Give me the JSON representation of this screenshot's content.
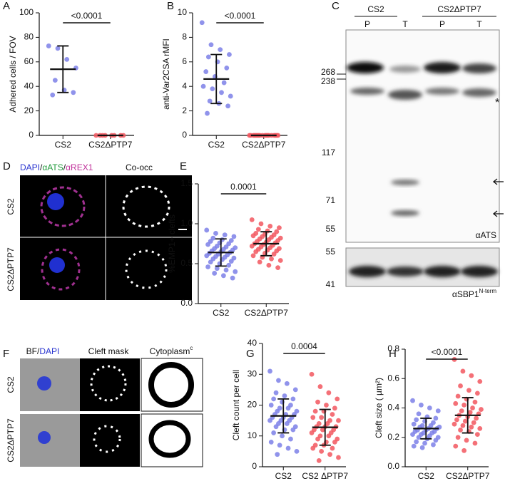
{
  "chart_data": [
    {
      "type": "dot",
      "panel": "A",
      "ylabel": "Adhered cells / FOV",
      "p_value": "<0.0001",
      "ylim": [
        0,
        100
      ],
      "yticks": [
        0,
        20,
        40,
        60,
        80,
        100
      ],
      "series": [
        {
          "name": "CS2",
          "color": "#7c80e8",
          "values": [
            73,
            71,
            62,
            55,
            45,
            37,
            35,
            33
          ],
          "mean": 54,
          "sd": 19
        },
        {
          "name": "CS2ΔPTP7",
          "color": "#f2575f",
          "values": [
            0,
            0,
            0,
            0,
            0,
            0,
            0,
            0
          ],
          "mean": 0,
          "sd": 0
        }
      ]
    },
    {
      "type": "dot",
      "panel": "B",
      "ylabel": "anti-Var2CSA rMFI",
      "p_value": "<0.0001",
      "ylim": [
        0,
        10
      ],
      "yticks": [
        0,
        2,
        4,
        6,
        8,
        10
      ],
      "series": [
        {
          "name": "CS2",
          "color": "#7c80e8",
          "values": [
            9.2,
            7.4,
            7.0,
            6.6,
            6.4,
            6.0,
            5.5,
            5.2,
            4.8,
            4.3,
            4.0,
            3.8,
            3.5,
            3.2,
            2.8,
            2.6,
            2.4,
            1.8
          ],
          "mean": 4.6,
          "sd": 2.0
        },
        {
          "name": "CS2ΔPTP7",
          "color": "#f2575f",
          "values": [
            0,
            0,
            0,
            0,
            0,
            0,
            0,
            0,
            0,
            0,
            0,
            0,
            0,
            0,
            0,
            0,
            0,
            0
          ],
          "mean": 0,
          "sd": 0
        }
      ]
    },
    {
      "type": "dot",
      "panel": "E",
      "ylabel": "%EMP1+ clefts",
      "p_value": "0.0001",
      "ylim": [
        0,
        1.5
      ],
      "yticks": [
        {
          "value": 0,
          "label": "0.0"
        },
        0.5,
        {
          "value": 1,
          "label": "1.0"
        },
        1.5
      ],
      "series": [
        {
          "name": "CS2",
          "color": "#7c80e8",
          "values": [
            0.92,
            0.88,
            0.86,
            0.84,
            0.82,
            0.8,
            0.79,
            0.78,
            0.76,
            0.75,
            0.74,
            0.72,
            0.71,
            0.7,
            0.69,
            0.68,
            0.67,
            0.66,
            0.65,
            0.64,
            0.63,
            0.62,
            0.61,
            0.6,
            0.59,
            0.58,
            0.57,
            0.56,
            0.55,
            0.53,
            0.52,
            0.5,
            0.48,
            0.46,
            0.44,
            0.42,
            0.4,
            0.38,
            0.35,
            0.32
          ],
          "mean": 0.64,
          "sd": 0.17
        },
        {
          "name": "CS2ΔPTP7",
          "color": "#f2575f",
          "values": [
            1.05,
            1.0,
            0.97,
            0.95,
            0.93,
            0.91,
            0.9,
            0.88,
            0.87,
            0.86,
            0.85,
            0.84,
            0.83,
            0.82,
            0.81,
            0.8,
            0.79,
            0.78,
            0.77,
            0.76,
            0.75,
            0.74,
            0.73,
            0.72,
            0.71,
            0.7,
            0.69,
            0.68,
            0.67,
            0.66,
            0.65,
            0.63,
            0.62,
            0.6,
            0.58,
            0.56,
            0.54,
            0.52,
            0.48,
            0.45
          ],
          "mean": 0.75,
          "sd": 0.15
        }
      ]
    },
    {
      "type": "dot",
      "panel": "G",
      "ylabel": "Cleft count per cell",
      "p_value": "0.0004",
      "ylim": [
        0,
        40
      ],
      "yticks": [
        0,
        10,
        20,
        30,
        40
      ],
      "series": [
        {
          "name": "CS2",
          "color": "#7c80e8",
          "values": [
            31,
            28,
            27,
            25,
            24,
            23,
            22,
            22,
            21,
            20,
            20,
            19,
            19,
            18,
            18,
            17,
            17,
            17,
            16,
            16,
            16,
            15,
            15,
            15,
            14,
            14,
            13,
            13,
            12,
            12,
            11,
            10,
            9,
            8,
            7,
            6,
            5,
            4
          ],
          "mean": 16.5,
          "sd": 5.5
        },
        {
          "name": "CS2 ΔPTP7",
          "color": "#f2575f",
          "values": [
            30,
            26,
            24,
            22,
            21,
            20,
            19,
            18,
            18,
            17,
            16,
            16,
            15,
            15,
            14,
            14,
            13,
            13,
            13,
            12,
            12,
            12,
            11,
            11,
            10,
            10,
            9,
            9,
            8,
            8,
            7,
            7,
            6,
            6,
            5,
            4,
            3,
            2
          ],
          "mean": 12.8,
          "sd": 5.8
        }
      ]
    },
    {
      "type": "dot",
      "panel": "H",
      "ylabel": "Cleft size ( µm²)",
      "p_value": "<0.0001",
      "ylim": [
        0,
        0.8
      ],
      "yticks": [
        {
          "value": 0,
          "label": "0.0"
        },
        0.2,
        0.4,
        0.6,
        0.8
      ],
      "series": [
        {
          "name": "CS2",
          "color": "#7c80e8",
          "values": [
            0.45,
            0.42,
            0.4,
            0.38,
            0.36,
            0.34,
            0.33,
            0.32,
            0.31,
            0.3,
            0.29,
            0.28,
            0.28,
            0.27,
            0.27,
            0.26,
            0.26,
            0.25,
            0.25,
            0.24,
            0.24,
            0.23,
            0.23,
            0.22,
            0.22,
            0.21,
            0.2,
            0.2,
            0.19,
            0.18,
            0.17,
            0.16,
            0.15,
            0.14,
            0.13
          ],
          "mean": 0.26,
          "sd": 0.07
        },
        {
          "name": "CS2ΔPTP7",
          "color": "#f2575f",
          "values": [
            0.73,
            0.65,
            0.62,
            0.58,
            0.55,
            0.52,
            0.5,
            0.48,
            0.46,
            0.44,
            0.43,
            0.42,
            0.4,
            0.39,
            0.38,
            0.37,
            0.36,
            0.35,
            0.34,
            0.33,
            0.32,
            0.31,
            0.3,
            0.29,
            0.28,
            0.27,
            0.26,
            0.25,
            0.24,
            0.22,
            0.2,
            0.18,
            0.16,
            0.14,
            0.11
          ],
          "mean": 0.35,
          "sd": 0.12
        }
      ]
    }
  ],
  "blot": {
    "panel": "C",
    "groups": [
      "CS2",
      "CS2ΔPTP7"
    ],
    "lanes": [
      "P",
      "T",
      "P",
      "T"
    ],
    "markers_top": [
      268,
      238,
      117,
      71,
      55
    ],
    "star": "*",
    "antibody_top": "αATS",
    "markers_bottom": [
      55,
      41
    ],
    "antibody_bottom": "αSBP1",
    "antibody_bottom_sup": "N-term"
  },
  "micrograph_d": {
    "panel": "D",
    "stains": [
      "DAPI",
      "αATS",
      "αREX1"
    ],
    "separator": "/",
    "column_right": "Co-occ",
    "rows": [
      "CS2",
      "CS2ΔPTP7"
    ]
  },
  "micrograph_f": {
    "panel": "F",
    "stains": [
      "BF",
      "DAPI"
    ],
    "separator": "/",
    "columns": [
      "Cleft mask",
      "Cytoplasm"
    ],
    "column_sup": "c",
    "rows": [
      "CS2",
      "CS2ΔPTP7"
    ]
  }
}
